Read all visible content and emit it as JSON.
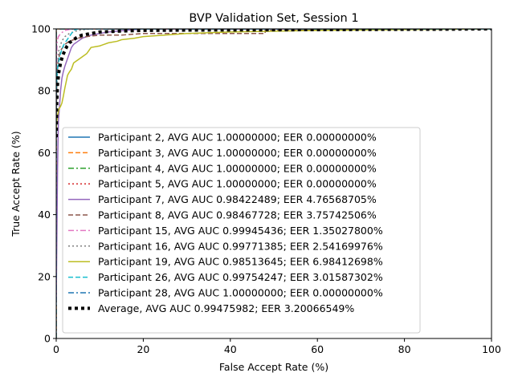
{
  "chart_data": {
    "type": "line",
    "title": "BVP Validation Set, Session 1",
    "xlabel": "False Accept Rate (%)",
    "ylabel": "True Accept Rate (%)",
    "xlim": [
      0,
      100
    ],
    "ylim": [
      0,
      100
    ],
    "xticks": [
      "0",
      "20",
      "40",
      "60",
      "80",
      "100"
    ],
    "yticks": [
      "0",
      "20",
      "40",
      "60",
      "80",
      "100"
    ],
    "grid": false,
    "legend_position": "lower-right",
    "series": [
      {
        "name": "Participant 2, AVG AUC 1.00000000; EER 0.00000000%",
        "color": "#1f77b4",
        "dash": "solid",
        "x": [
          0,
          0,
          100
        ],
        "y": [
          0,
          100,
          100
        ]
      },
      {
        "name": "Participant 3, AVG AUC 1.00000000; EER 0.00000000%",
        "color": "#ff7f0e",
        "dash": "dashed",
        "x": [
          0,
          0,
          100
        ],
        "y": [
          0,
          100,
          100
        ]
      },
      {
        "name": "Participant 4, AVG AUC 1.00000000; EER 0.00000000%",
        "color": "#2ca02c",
        "dash": "dashdot",
        "x": [
          0,
          0,
          100
        ],
        "y": [
          0,
          100,
          100
        ]
      },
      {
        "name": "Participant 5, AVG AUC 1.00000000; EER 0.00000000%",
        "color": "#d62728",
        "dash": "dotted",
        "x": [
          0,
          0,
          100
        ],
        "y": [
          0,
          100,
          100
        ]
      },
      {
        "name": "Participant 7, AVG AUC 0.98422489; EER 4.76568705%",
        "color": "#9467bd",
        "dash": "solid",
        "x": [
          0,
          0.3,
          0.5,
          0.8,
          1.0,
          1.3,
          1.6,
          2.0,
          2.5,
          3.0,
          3.5,
          4.0,
          5.0,
          6.0,
          7.0,
          8.0,
          10.0,
          12.0,
          16.0,
          20.0,
          100
        ],
        "y": [
          12,
          55,
          70,
          76,
          80,
          84,
          86,
          88,
          90,
          92,
          94,
          95,
          96,
          97,
          97.5,
          98,
          98.5,
          99,
          99.5,
          100,
          100
        ]
      },
      {
        "name": "Participant 8, AVG AUC 0.98467728; EER 3.75742506%",
        "color": "#8c564b",
        "dash": "dashed",
        "x": [
          0,
          0.2,
          0.5,
          1.0,
          1.5,
          2.0,
          3.0,
          4.0,
          5.0,
          7.0,
          10.0,
          15.0,
          20.0,
          30.0,
          40.0,
          48.0,
          48.0,
          100
        ],
        "y": [
          70,
          85,
          90,
          93,
          94,
          95,
          96,
          96.5,
          97,
          97.5,
          98,
          98,
          98.5,
          98.5,
          98.5,
          98.5,
          99.5,
          100
        ]
      },
      {
        "name": "Participant 15, AVG AUC 0.99945436; EER 1.35027800%",
        "color": "#e377c2",
        "dash": "dashdot",
        "x": [
          0,
          0.2,
          0.5,
          1.0,
          1.5,
          2.0,
          3.0,
          4.0,
          100
        ],
        "y": [
          85,
          96,
          97.5,
          98.5,
          99,
          99.5,
          99.8,
          100,
          100
        ]
      },
      {
        "name": "Participant 16, AVG AUC 0.99771385; EER 2.54169976%",
        "color": "#7f7f7f",
        "dash": "dotted",
        "x": [
          0,
          0.3,
          0.6,
          1.0,
          1.5,
          2.0,
          2.5,
          3.0,
          4.0,
          5.0,
          8.0,
          100
        ],
        "y": [
          72,
          88,
          93,
          95,
          96.5,
          97.5,
          98,
          98.5,
          99,
          99.5,
          100,
          100
        ]
      },
      {
        "name": "Participant 19, AVG AUC 0.98513645; EER 6.98412698%",
        "color": "#bcbd22",
        "dash": "solid",
        "x": [
          0,
          0.3,
          0.6,
          1.0,
          1.3,
          1.6,
          2.0,
          2.3,
          2.6,
          3.0,
          3.5,
          4.0,
          4.5,
          5.0,
          6.0,
          7.0,
          7.5,
          8.0,
          10.0,
          11.0,
          12.0,
          14.0,
          15.0,
          18.0,
          20.0,
          25.0,
          30.0,
          40.0,
          60.0,
          100
        ],
        "y": [
          68,
          72,
          74,
          75,
          76,
          78,
          81,
          83,
          85,
          86,
          87,
          89,
          89.5,
          90,
          91,
          92,
          93,
          94,
          94.5,
          95,
          95.5,
          96,
          96.5,
          97,
          97.5,
          98,
          98.5,
          99,
          99.5,
          100
        ]
      },
      {
        "name": "Participant 26, AVG AUC 0.99754247; EER 3.01587302%",
        "color": "#17becf",
        "dash": "dashed",
        "x": [
          0,
          0.2,
          0.5,
          0.8,
          1.2,
          1.6,
          2.0,
          2.5,
          3.0,
          3.5,
          4.0,
          5.0,
          100
        ],
        "y": [
          80,
          86,
          89,
          91,
          93,
          94.5,
          95.5,
          96.5,
          97.5,
          98.5,
          99.5,
          100,
          100
        ]
      },
      {
        "name": "Participant 28, AVG AUC 1.00000000; EER 0.00000000%",
        "color": "#1f77b4",
        "dash": "dashdot",
        "x": [
          0,
          0,
          100
        ],
        "y": [
          0,
          100,
          100
        ]
      },
      {
        "name": "Average, AVG AUC 0.99475982; EER 3.20066549%",
        "color": "#000000",
        "dash": "avg",
        "x": [
          0,
          0.1,
          0.3,
          0.6,
          1.0,
          1.5,
          2.0,
          2.5,
          3.0,
          4.0,
          5.0,
          6.0,
          8.0,
          10.0,
          15.0,
          20.0,
          30.0,
          50.0,
          70.0,
          90.0,
          100
        ],
        "y": [
          65,
          75,
          82,
          86,
          89,
          91.5,
          93,
          94.5,
          95.5,
          96.5,
          97.5,
          98,
          98.5,
          99,
          99.3,
          99.5,
          99.6,
          99.7,
          99.8,
          99.9,
          100
        ]
      }
    ]
  }
}
